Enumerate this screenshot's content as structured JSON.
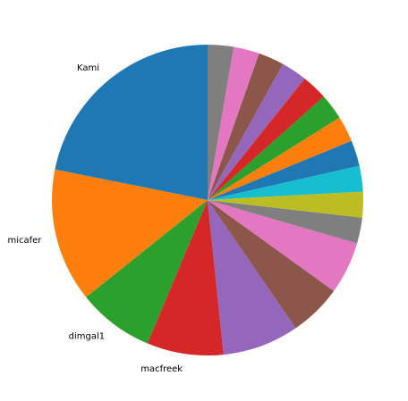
{
  "chart_data": {
    "type": "pie",
    "title": "",
    "start_angle_deg": 90,
    "direction": "counterclockwise",
    "slices": [
      {
        "label": "Kami",
        "value": 22,
        "color": "#1f77b4"
      },
      {
        "label": "micafer",
        "value": 14,
        "color": "#ff7f0e"
      },
      {
        "label": "dimgal1",
        "value": 8,
        "color": "#2ca02c"
      },
      {
        "label": "macfreek",
        "value": 8,
        "color": "#d62728"
      },
      {
        "label": "",
        "value": 8,
        "color": "#9467bd"
      },
      {
        "label": "",
        "value": 5.5,
        "color": "#8c564b"
      },
      {
        "label": "",
        "value": 5.5,
        "color": "#e377c2"
      },
      {
        "label": "",
        "value": 2.7,
        "color": "#7f7f7f"
      },
      {
        "label": "",
        "value": 2.7,
        "color": "#bcbd22"
      },
      {
        "label": "",
        "value": 2.7,
        "color": "#17becf"
      },
      {
        "label": "",
        "value": 2.7,
        "color": "#1f77b4"
      },
      {
        "label": "",
        "value": 2.7,
        "color": "#ff7f0e"
      },
      {
        "label": "",
        "value": 2.7,
        "color": "#2ca02c"
      },
      {
        "label": "",
        "value": 2.7,
        "color": "#d62728"
      },
      {
        "label": "",
        "value": 2.7,
        "color": "#9467bd"
      },
      {
        "label": "",
        "value": 2.7,
        "color": "#8c564b"
      },
      {
        "label": "",
        "value": 2.7,
        "color": "#e377c2"
      },
      {
        "label": "",
        "value": 2.7,
        "color": "#7f7f7f"
      }
    ]
  }
}
